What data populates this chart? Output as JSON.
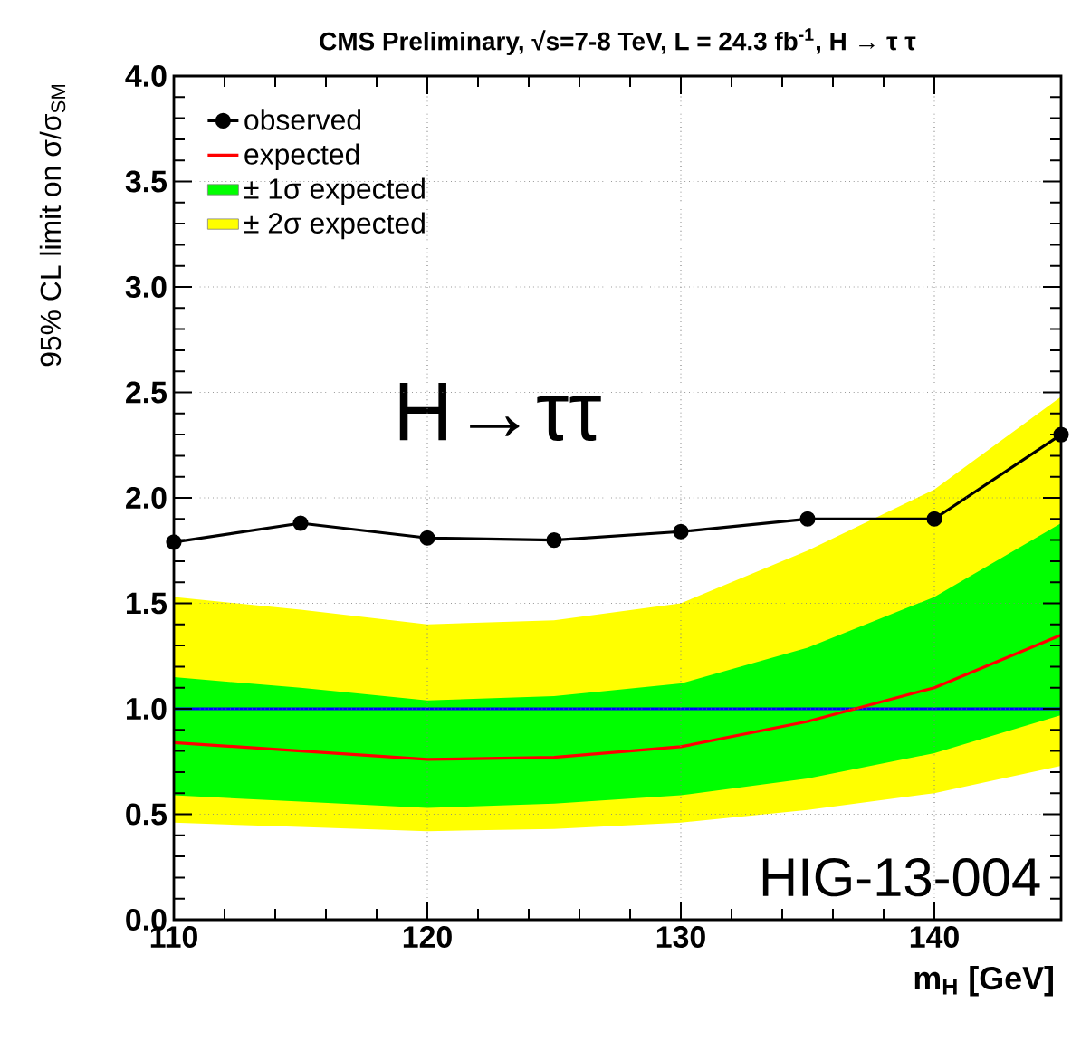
{
  "chart_data": {
    "type": "line",
    "title": "CMS Preliminary, √s=7-8 TeV, L = 24.3 fb$^{-1}$, H → τ τ",
    "xlabel": "m$_{H}$ [GeV]",
    "ylabel": "95% CL limit on σ/σ$_{SM}$",
    "x": [
      110,
      115,
      120,
      125,
      130,
      135,
      140,
      145
    ],
    "series": [
      {
        "name": "observed",
        "color": "#000000",
        "marker": "circle",
        "values": [
          1.79,
          1.88,
          1.81,
          1.8,
          1.84,
          1.9,
          1.9,
          2.3
        ]
      },
      {
        "name": "expected",
        "color": "#ff0000",
        "values": [
          0.84,
          0.8,
          0.76,
          0.77,
          0.82,
          0.94,
          1.1,
          1.35
        ]
      },
      {
        "name": "± 1σ expected",
        "type": "area",
        "color": "#00ff00",
        "values": [
          null,
          null,
          null,
          null,
          null,
          null,
          null,
          null
        ],
        "lower": [
          0.59,
          0.56,
          0.53,
          0.55,
          0.59,
          0.67,
          0.79,
          0.97
        ],
        "upper": [
          1.15,
          1.1,
          1.04,
          1.06,
          1.12,
          1.29,
          1.53,
          1.88
        ]
      },
      {
        "name": "± 2σ expected",
        "type": "area",
        "color": "#ffff00",
        "values": [
          null,
          null,
          null,
          null,
          null,
          null,
          null,
          null
        ],
        "lower": [
          0.46,
          0.44,
          0.42,
          0.43,
          0.46,
          0.52,
          0.6,
          0.73
        ],
        "upper": [
          1.53,
          1.47,
          1.4,
          1.42,
          1.5,
          1.75,
          2.04,
          2.48
        ]
      }
    ],
    "ref_lines": [
      {
        "axis": "y",
        "value": 1,
        "color": "#0000ff"
      }
    ],
    "xlim": [
      110,
      145
    ],
    "ylim": [
      0,
      4
    ],
    "xticks": [
      110,
      120,
      130,
      140
    ],
    "yticks": [
      {
        "value": 0,
        "label": "0.0"
      },
      {
        "value": 0.5,
        "label": "0.5"
      },
      {
        "value": 1,
        "label": "1.0"
      },
      {
        "value": 1.5,
        "label": "1.5"
      },
      {
        "value": 2,
        "label": "2.0"
      },
      {
        "value": 2.5,
        "label": "2.5"
      },
      {
        "value": 3,
        "label": "3.0"
      },
      {
        "value": 3.5,
        "label": "3.5"
      },
      {
        "value": 4,
        "label": "4.0"
      }
    ],
    "grid": true,
    "legend": "top left",
    "annotations": [
      "H→ττ",
      "HIG-13-004"
    ]
  }
}
